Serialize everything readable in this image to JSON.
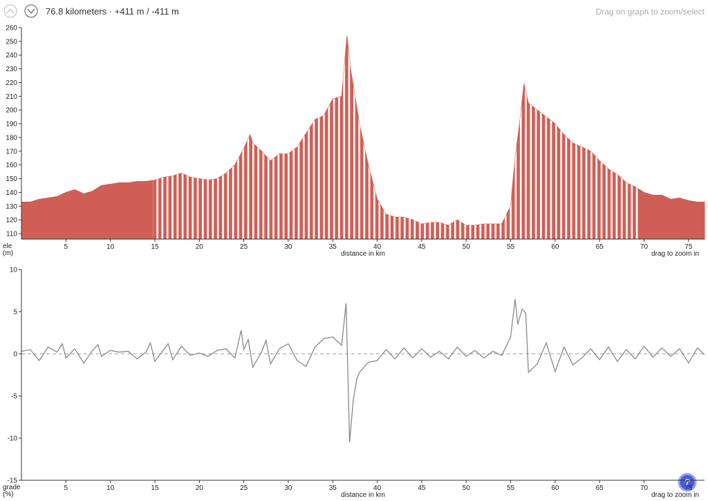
{
  "header": {
    "summary": "76.8 kilometers · +411 m / -411 m",
    "hint": "Drag on graph to zoom/select"
  },
  "chart_data": [
    {
      "type": "area",
      "y_label": [
        "ele",
        "(m)"
      ],
      "x_label": "distance in km",
      "zoom_hint": "drag to zoom in",
      "color": "#cf5f56",
      "highlight_range": [
        14.8,
        69.6
      ],
      "xlim": [
        0,
        76.8
      ],
      "xticks": [
        5,
        10,
        15,
        20,
        25,
        30,
        35,
        40,
        45,
        50,
        55,
        60,
        65,
        70,
        75
      ],
      "ylim": [
        106,
        260
      ],
      "yticks": [
        110,
        120,
        130,
        140,
        150,
        160,
        170,
        180,
        190,
        200,
        210,
        220,
        230,
        240,
        250,
        260
      ],
      "x": [
        0,
        1,
        2,
        3,
        4,
        5,
        6,
        7,
        8,
        9,
        10,
        11,
        12,
        13,
        14,
        15,
        16,
        17,
        18,
        19,
        20,
        21,
        22,
        23,
        24,
        25,
        25.7,
        26,
        27,
        28,
        29,
        30,
        31,
        32,
        33,
        34,
        35,
        36,
        36.6,
        37,
        38,
        39,
        40,
        41,
        42,
        43,
        44,
        45,
        46,
        47,
        48,
        49,
        50,
        51,
        52,
        53,
        54,
        55,
        55.5,
        56,
        56.5,
        57,
        58,
        59,
        60,
        61,
        62,
        63,
        64,
        65,
        66,
        67,
        68,
        69,
        70,
        71,
        72,
        73,
        74,
        75,
        76,
        76.8
      ],
      "values": [
        133,
        133,
        135,
        136,
        137,
        140,
        142,
        139,
        141,
        145,
        146,
        147,
        147,
        148,
        148,
        149,
        151,
        152,
        154,
        151,
        150,
        149,
        150,
        154,
        160,
        172,
        182,
        176,
        170,
        163,
        168,
        168,
        173,
        183,
        193,
        196,
        208,
        210,
        254,
        230,
        190,
        160,
        135,
        124,
        122,
        122,
        120,
        117,
        118,
        118,
        116,
        120,
        116,
        116,
        117,
        117,
        117,
        130,
        165,
        190,
        219,
        205,
        200,
        195,
        190,
        182,
        176,
        173,
        170,
        163,
        157,
        153,
        147,
        144,
        140,
        138,
        138,
        135,
        136,
        134,
        133,
        133
      ]
    },
    {
      "type": "line",
      "y_label": [
        "grade",
        "(%)"
      ],
      "x_label": "distance in km",
      "zoom_hint": "drag to zoom in",
      "color": "#888888",
      "reference_line": 0,
      "xlim": [
        0,
        76.8
      ],
      "xticks": [
        5,
        10,
        15,
        20,
        25,
        30,
        35,
        40,
        45,
        50,
        55,
        60,
        65,
        70,
        75
      ],
      "ylim": [
        -15,
        10
      ],
      "yticks": [
        -15,
        -10,
        -5,
        0,
        5,
        10
      ],
      "x": [
        0,
        1,
        2,
        3,
        4,
        4.6,
        5,
        6,
        7,
        8,
        8.6,
        9,
        10,
        11,
        12,
        13,
        14,
        14.5,
        15,
        16,
        16.5,
        17,
        18,
        19,
        20,
        21,
        22,
        23,
        24,
        24.7,
        25,
        25.5,
        26,
        27,
        27.5,
        28,
        29,
        30,
        31,
        32,
        33,
        34,
        35,
        36,
        36.5,
        36.9,
        37.3,
        37.7,
        38,
        39,
        40,
        41,
        42,
        43,
        44,
        45,
        46,
        47,
        48,
        49,
        50,
        51,
        52,
        53,
        54,
        55,
        55.5,
        55.8,
        56.3,
        56.7,
        57,
        58,
        59,
        60,
        61,
        62,
        63,
        64,
        65,
        66,
        67,
        68,
        69,
        70,
        71,
        72,
        73,
        74,
        75,
        76,
        76.8
      ],
      "values": [
        0.3,
        0.5,
        -0.8,
        0.8,
        0.2,
        1.2,
        -0.5,
        0.6,
        -1.1,
        0.4,
        1.1,
        -0.3,
        0.4,
        0.2,
        0.3,
        -0.6,
        0.2,
        1.3,
        -0.9,
        0.5,
        1.2,
        -0.7,
        0.9,
        -0.2,
        0.1,
        -0.3,
        0.4,
        0.6,
        -0.5,
        2.8,
        0.5,
        1.7,
        -1.6,
        0.2,
        1.6,
        -1.2,
        0.6,
        1.2,
        -0.8,
        -1.5,
        0.8,
        1.8,
        2.0,
        1.0,
        6.0,
        -10.5,
        -5.5,
        -3.0,
        -2.2,
        -1.0,
        -0.8,
        0.5,
        -0.6,
        0.7,
        -0.5,
        0.6,
        -0.4,
        0.3,
        -0.6,
        0.8,
        -0.3,
        0.4,
        -0.5,
        0.3,
        -0.2,
        2.0,
        6.5,
        3.5,
        5.3,
        4.8,
        -2.2,
        -1.2,
        1.3,
        -2.1,
        0.8,
        -1.3,
        -0.5,
        0.6,
        -0.7,
        0.8,
        -0.9,
        0.5,
        -0.6,
        0.9,
        -0.4,
        0.7,
        -0.3,
        0.6,
        -1.1,
        0.7,
        -0.1
      ]
    }
  ]
}
